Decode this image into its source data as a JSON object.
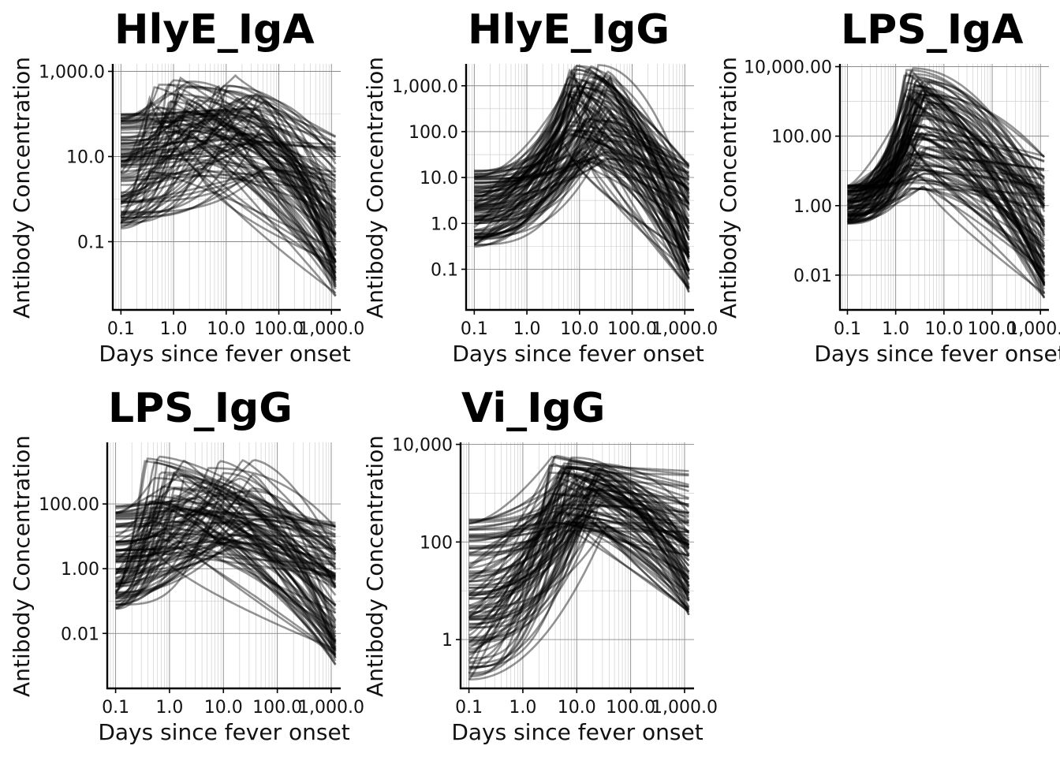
{
  "chart_data": [
    {
      "type": "line",
      "title": "HlyE_IgA",
      "xlabel": "Days since fever onset",
      "ylabel": "Antibody Concentration",
      "x_scale": "log",
      "y_scale": "log",
      "xlim": [
        0.07,
        1500
      ],
      "ylim": [
        0.0025,
        1500
      ],
      "x_ticks": [
        0.1,
        1,
        10,
        100,
        1000
      ],
      "x_tick_labels": [
        "0.1",
        "1.0",
        "10.0",
        "100.0",
        "1,000.0"
      ],
      "y_ticks": [
        0.1,
        10,
        1000
      ],
      "y_tick_labels": [
        "0.1",
        "10.0",
        "1,000.0"
      ],
      "n_series": 100,
      "curves": {
        "x_start": 0.1,
        "x_end": 1200,
        "y0_range": [
          0.2,
          100
        ],
        "peak_t_range": [
          0.3,
          60
        ],
        "peak_range": [
          3,
          800
        ],
        "end_range": [
          0.005,
          30
        ]
      }
    },
    {
      "type": "line",
      "title": "HlyE_IgG",
      "xlabel": "Days since fever onset",
      "ylabel": "Antibody Concentration",
      "x_scale": "log",
      "y_scale": "log",
      "xlim": [
        0.07,
        1500
      ],
      "ylim": [
        0.013,
        3000
      ],
      "x_ticks": [
        0.1,
        1,
        10,
        100,
        1000
      ],
      "x_tick_labels": [
        "0.1",
        "1.0",
        "10.0",
        "100.0",
        "1,000.0"
      ],
      "y_ticks": [
        0.1,
        1,
        10,
        100,
        1000
      ],
      "y_tick_labels": [
        "0.1",
        "1.0",
        "10.0",
        "100.0",
        "1,000.0"
      ],
      "n_series": 100,
      "curves": {
        "x_start": 0.1,
        "x_end": 1200,
        "y0_range": [
          0.3,
          15
        ],
        "peak_t_range": [
          5,
          40
        ],
        "peak_range": [
          20,
          3000
        ],
        "end_range": [
          0.03,
          20
        ]
      }
    },
    {
      "type": "line",
      "title": "LPS_IgA",
      "xlabel": "Days since fever onset",
      "ylabel": "Antibody Concentration",
      "x_scale": "log",
      "y_scale": "log",
      "xlim": [
        0.07,
        1500
      ],
      "ylim": [
        0.001,
        12000
      ],
      "x_ticks": [
        0.1,
        1,
        10,
        100,
        1000
      ],
      "x_tick_labels": [
        "0.1",
        "1.0",
        "10.0",
        "100.0",
        "1,000.0"
      ],
      "y_ticks": [
        0.01,
        1,
        100,
        10000
      ],
      "y_tick_labels": [
        "0.01",
        "1.00",
        "100.00",
        "10,000.00"
      ],
      "n_series": 100,
      "curves": {
        "x_start": 0.1,
        "x_end": 1200,
        "y0_range": [
          0.3,
          4
        ],
        "peak_t_range": [
          1.5,
          5
        ],
        "peak_range": [
          3,
          9000
        ],
        "end_range": [
          0.002,
          30
        ]
      }
    },
    {
      "type": "line",
      "title": "LPS_IgG",
      "xlabel": "Days since fever onset",
      "ylabel": "Antibody Concentration",
      "x_scale": "log",
      "y_scale": "log",
      "xlim": [
        0.07,
        1500
      ],
      "ylim": [
        0.0002,
        8000
      ],
      "x_ticks": [
        0.1,
        1,
        10,
        100,
        1000
      ],
      "x_tick_labels": [
        "0.1",
        "1.0",
        "10.0",
        "100.0",
        "1,000.0"
      ],
      "y_ticks": [
        0.01,
        1,
        100
      ],
      "y_tick_labels": [
        "0.01",
        "1.00",
        "100.00"
      ],
      "n_series": 100,
      "curves": {
        "x_start": 0.1,
        "x_end": 1200,
        "y0_range": [
          0.05,
          100
        ],
        "peak_t_range": [
          0.3,
          40
        ],
        "peak_range": [
          3,
          3000
        ],
        "end_range": [
          0.001,
          30
        ]
      }
    },
    {
      "type": "line",
      "title": "Vi_IgG",
      "xlabel": "Days since fever onset",
      "ylabel": "Antibody Concentration",
      "x_scale": "log",
      "y_scale": "log",
      "xlim": [
        0.07,
        1500
      ],
      "ylim": [
        0.1,
        11000
      ],
      "x_ticks": [
        0.1,
        1,
        10,
        100,
        1000
      ],
      "x_tick_labels": [
        "0.1",
        "1.0",
        "10.0",
        "100.0",
        "1,000.0"
      ],
      "y_ticks": [
        1,
        100,
        10000
      ],
      "y_tick_labels": [
        "1",
        "100",
        "10,000"
      ],
      "n_series": 100,
      "curves": {
        "x_start": 0.1,
        "x_end": 1200,
        "y0_range": [
          0.15,
          300
        ],
        "peak_t_range": [
          3,
          40
        ],
        "peak_range": [
          150,
          6000
        ],
        "end_range": [
          3,
          5000
        ]
      }
    }
  ]
}
